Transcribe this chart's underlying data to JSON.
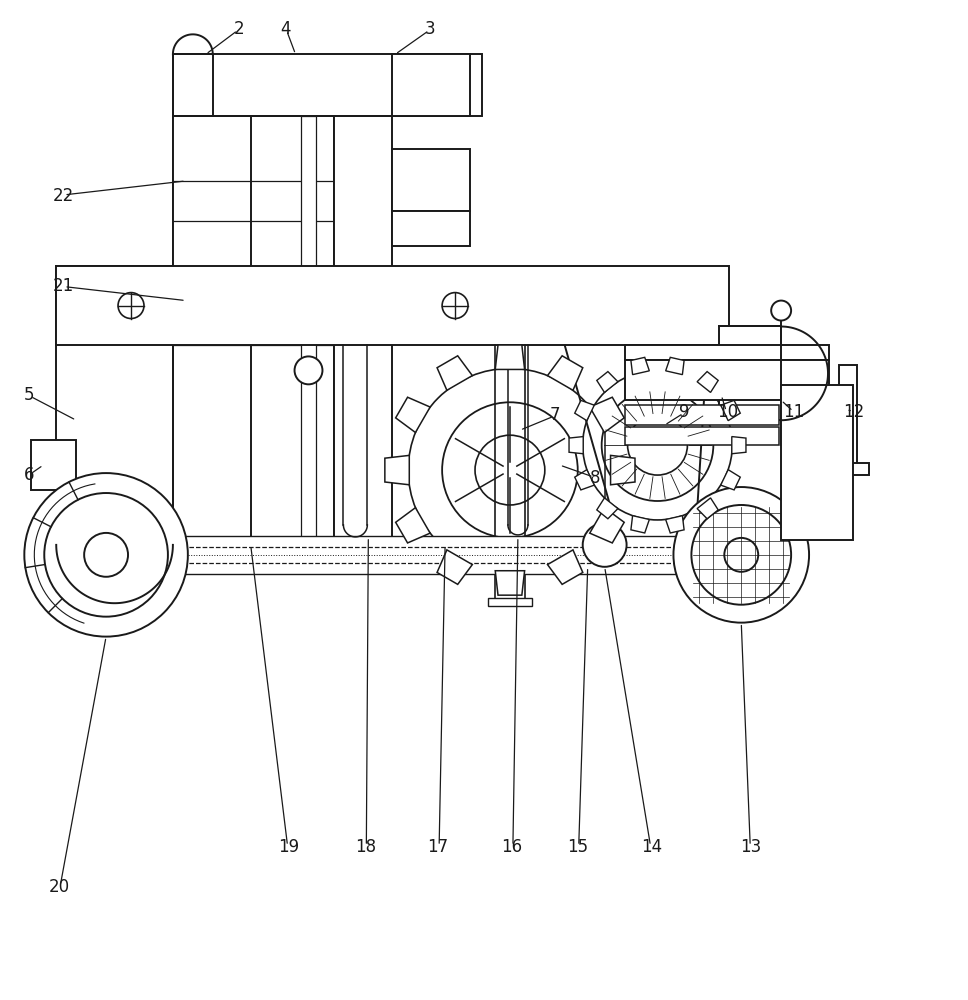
{
  "background": "#ffffff",
  "line_color": "#1a1a1a",
  "lw": 1.4,
  "fig_width": 9.68,
  "fig_height": 10.0,
  "xlim": [
    0,
    9.68
  ],
  "ylim": [
    0,
    10.0
  ]
}
